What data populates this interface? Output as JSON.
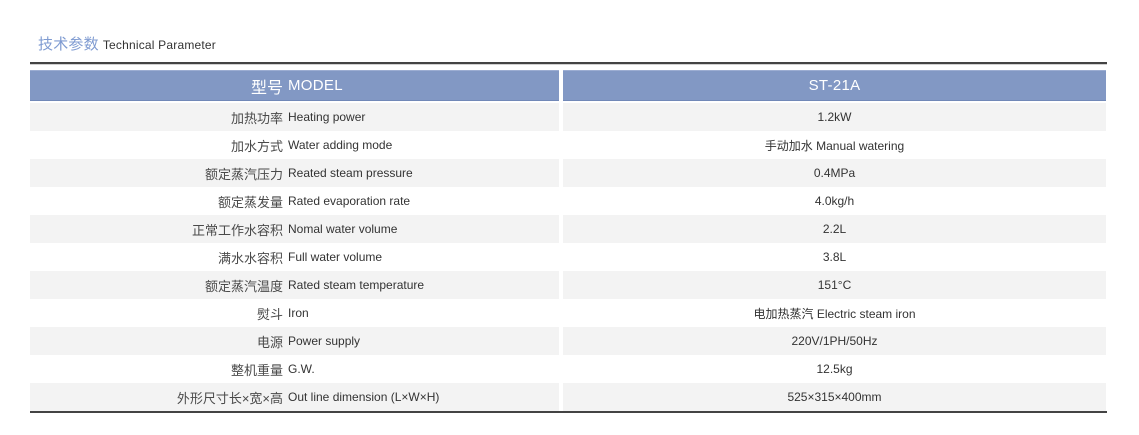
{
  "page": {
    "title_cn": "技术参数",
    "title_en": "Technical Parameter"
  },
  "table": {
    "header": {
      "param_cn": "型号",
      "param_en": "MODEL",
      "value": "ST-21A"
    },
    "rows": [
      {
        "cn": "加热功率",
        "en": "Heating power",
        "value": "1.2kW"
      },
      {
        "cn": "加水方式",
        "en": "Water adding mode",
        "value": "手动加水 Manual watering"
      },
      {
        "cn": "额定蒸汽压力",
        "en": "Reated steam pressure",
        "value": "0.4MPa"
      },
      {
        "cn": "额定蒸发量",
        "en": "Rated evaporation rate",
        "value": "4.0kg/h"
      },
      {
        "cn": "正常工作水容积",
        "en": "Nomal water volume",
        "value": "2.2L"
      },
      {
        "cn": "满水水容积",
        "en": "Full water volume",
        "value": "3.8L"
      },
      {
        "cn": "额定蒸汽温度",
        "en": "Rated steam temperature",
        "value": "151°C"
      },
      {
        "cn": "熨斗",
        "en": "Iron",
        "value": "电加热蒸汽 Electric steam iron"
      },
      {
        "cn": "电源",
        "en": "Power supply",
        "value": "220V/1PH/50Hz"
      },
      {
        "cn": "整机重量",
        "en": "G.W.",
        "value": "12.5kg"
      },
      {
        "cn": "外形尺寸长×宽×高",
        "en": "Out line dimension (L×W×H)",
        "value": "525×315×400mm"
      }
    ]
  },
  "colors": {
    "header_bg": "#8298C4",
    "header_text": "#FFFFFF",
    "alt_row_bg": "#F3F3F3",
    "title_text": "#7F9BD1",
    "rule_line": "#434343",
    "label_cn": "#4A4A4A",
    "label_en": "#333333",
    "value_text": "#333333"
  }
}
